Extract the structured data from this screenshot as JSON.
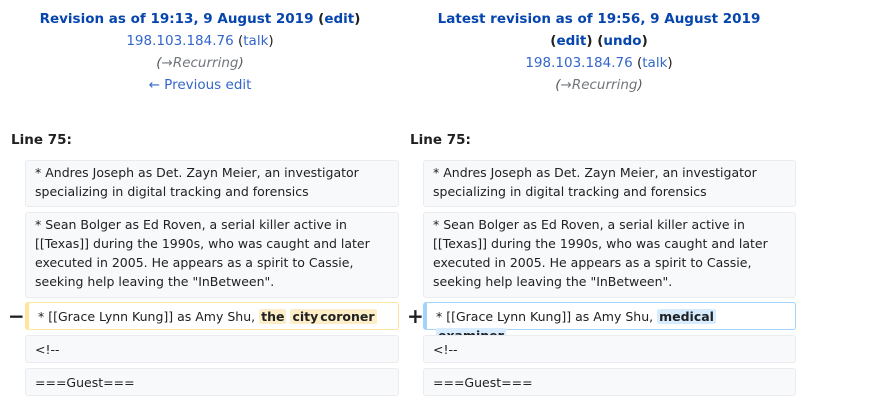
{
  "left_header": {
    "title_prefix": "Revision as of 19:13, 9 August 2019",
    "edit_label": "edit",
    "user": "198.103.184.76",
    "talk_label": "talk",
    "summary_arrow": "→",
    "summary_section": "Recurring",
    "prev_edit": "← Previous edit"
  },
  "right_header": {
    "title_prefix": "Latest revision as of 19:56, 9 August 2019",
    "edit_label": "edit",
    "undo_label": "undo",
    "user": "198.103.184.76",
    "talk_label": "talk",
    "summary_arrow": "→",
    "summary_section": "Recurring"
  },
  "line_label_left": "Line 75:",
  "line_label_right": "Line 75:",
  "context": {
    "andres": "* Andres Joseph as Det. Zayn Meier, an investigator specializing in digital tracking and forensics",
    "sean": "* Sean Bolger as Ed Roven, a serial killer active in [[Texas]] during the 1990s, who was caught and later executed in 2005. He appears as a spirit to Cassie, seeking help leaving the \"InBetween\".",
    "comment": "<!--",
    "guest": "===Guest==="
  },
  "deleted": {
    "marker": "−",
    "prefix": "* [[Grace Lynn Kung]] as Amy Shu, ",
    "words": [
      "the",
      "city",
      "coroner"
    ]
  },
  "added": {
    "marker": "+",
    "prefix": "* [[Grace Lynn Kung]] as Amy Shu, ",
    "words": [
      "medical",
      "examiner"
    ]
  },
  "colors": {
    "link": "#3366cc",
    "deleted_border": "#ffe49c",
    "added_border": "#a3d3ff",
    "deleted_highlight": "#feeec8",
    "added_highlight": "#d8ecff"
  }
}
